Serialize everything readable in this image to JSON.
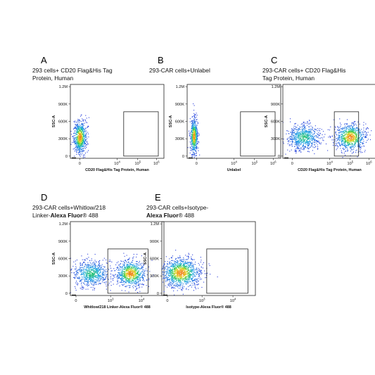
{
  "chart_data": [
    {
      "type": "scatter",
      "letter": "A",
      "title_lines": [
        [
          "293 cells+ CD20 Flag&His Tag"
        ],
        [
          "Protein, Human"
        ]
      ],
      "ylabel": "SSC-A",
      "yticks": [
        "0",
        "300K",
        "600K",
        "900K",
        "1.2M"
      ],
      "xticks": [
        "0",
        "10",
        "4",
        "10",
        "5",
        "10",
        "6"
      ],
      "xlabel": "CD20 Flag&His Tag Protein, Human",
      "xtick_layout": "fixed-456",
      "clusters": [
        {
          "x": 0.1,
          "y": 0.29,
          "sx": 0.035,
          "sy": 0.11,
          "n": 700,
          "dense": true
        }
      ]
    },
    {
      "type": "scatter",
      "letter": "B",
      "title_lines": [
        [
          "293-CAR cells+Unlabel"
        ]
      ],
      "ylabel": "SSC-A",
      "yticks": [
        "0",
        "300K",
        "600K",
        "900K",
        "1.2M"
      ],
      "xticks": [
        "0",
        "10",
        "4",
        "10",
        "5",
        "10",
        "6"
      ],
      "xlabel": "Unlabel",
      "xtick_layout": "fixed-456",
      "clusters": [
        {
          "x": 0.07,
          "y": 0.3,
          "sx": 0.02,
          "sy": 0.12,
          "n": 600,
          "dense": true
        }
      ]
    },
    {
      "type": "scatter",
      "letter": "C",
      "title_lines": [
        [
          "293-CAR cells+ CD20 Flag&His"
        ],
        [
          "Tag Protein, Human"
        ]
      ],
      "ylabel": "SSC-A",
      "yticks": [
        "0",
        "300K",
        "600K",
        "900K",
        "1.2M"
      ],
      "xticks": [
        "0",
        "10",
        "4",
        "10",
        "5",
        "10",
        "6"
      ],
      "xlabel": "CD20 Flag&His Tag Protein, Human",
      "xtick_layout": "fixed-456",
      "clusters": [
        {
          "x": 0.22,
          "y": 0.29,
          "sx": 0.09,
          "sy": 0.09,
          "n": 700,
          "dense": false
        },
        {
          "x": 0.72,
          "y": 0.29,
          "sx": 0.08,
          "sy": 0.09,
          "n": 800,
          "dense": true
        }
      ]
    },
    {
      "type": "scatter",
      "letter": "D",
      "title_lines": [
        [
          "293-CAR  cells+Whitlow/218"
        ],
        [
          "Linker-",
          "b:Alexa Fluor",
          "®",
          " 488"
        ]
      ],
      "ylabel": "SSC-A",
      "yticks": [
        "0",
        "300K",
        "600K",
        "900K",
        "1.2M"
      ],
      "xticks": [
        "0",
        "10",
        "3",
        "10",
        "4"
      ],
      "xlabel": "Whitlow/218 Linker-Alexa Fluor® 488",
      "xtick_layout": "fixed-34",
      "clusters": [
        {
          "x": 0.22,
          "y": 0.3,
          "sx": 0.1,
          "sy": 0.09,
          "n": 700,
          "dense": false
        },
        {
          "x": 0.64,
          "y": 0.3,
          "sx": 0.08,
          "sy": 0.09,
          "n": 800,
          "dense": true
        }
      ]
    },
    {
      "type": "scatter",
      "letter": "E",
      "title_lines": [
        [
          "293-CAR  cells+Isotype-"
        ],
        [
          "b:Alexa Fluor",
          "®",
          " 488"
        ]
      ],
      "ylabel": "SSC-A",
      "yticks": [
        "0",
        "300K",
        "600K",
        "900K",
        "1.2M"
      ],
      "xticks": [
        "0",
        "10",
        "3",
        "10",
        "4"
      ],
      "xlabel": "Isotype-Alexa Fluor® 488",
      "xtick_layout": "fixed-34",
      "clusters": [
        {
          "x": 0.2,
          "y": 0.31,
          "sx": 0.1,
          "sy": 0.1,
          "n": 1100,
          "dense": true
        }
      ]
    }
  ]
}
